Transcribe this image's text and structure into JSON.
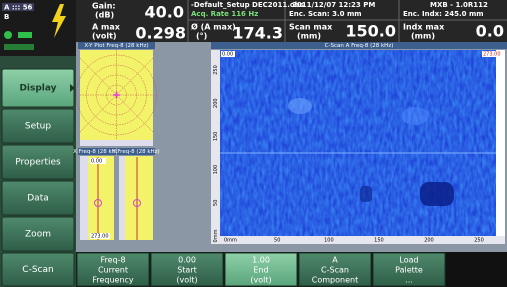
{
  "status": {
    "channel": "A ::: 56",
    "group": "B"
  },
  "header": {
    "gain": {
      "label": [
        "Gain:",
        "(dB)"
      ],
      "value": "40.0"
    },
    "amax": {
      "label": [
        "A max",
        "(volt)"
      ],
      "value": "0.298"
    },
    "file": "-Default_Setup DEC2011.obs",
    "acq_rate": "Acq. Rate 116  Hz",
    "phase": {
      "label": [
        "Ø (A max)",
        "(°)"
      ],
      "value": "174.3"
    },
    "datetime": "2011/12/07 12:23 PM",
    "enc_scan": "Enc. Scan:  3.0 mm",
    "scan_max": {
      "label": [
        "Scan max",
        "(mm)"
      ],
      "value": "150.0"
    },
    "instrument": "MXB - 1.0R112",
    "enc_indx": "Enc. Indx:  245.0 mm",
    "indx_max": {
      "label": [
        "Indx max",
        "(mm)"
      ],
      "value": "0.0"
    }
  },
  "menu": [
    {
      "label": "Display",
      "active": true
    },
    {
      "label": "Setup",
      "active": false
    },
    {
      "label": "Properties",
      "active": false
    },
    {
      "label": "Data",
      "active": false
    },
    {
      "label": "Zoom",
      "active": false
    },
    {
      "label": "C-Scan",
      "active": false
    }
  ],
  "panels": {
    "xy": {
      "title": "X-Y Plot Freq-8 (28 kHz)"
    },
    "x": {
      "title": "X Freq-8 (28 kHz)",
      "top": "0.00",
      "bottom": "273.00"
    },
    "y": {
      "title": "Y Freq-8 (28 kHz)"
    },
    "cscan": {
      "title": "C-Scan A Freq-8 (28 kHz)",
      "top_left": "0.00",
      "top_right": "273.00",
      "y_axis": [
        "250",
        "200",
        "150",
        "100",
        "50",
        "0mm"
      ],
      "x_axis": [
        "0mm",
        "50",
        "100",
        "150",
        "200",
        "250"
      ]
    }
  },
  "toolbar": [
    {
      "value": "Freq-8",
      "label": [
        "Current",
        "Frequency"
      ],
      "active": false
    },
    {
      "value": "0.00",
      "label": [
        "Start",
        "(volt)"
      ],
      "active": false
    },
    {
      "value": "1.00",
      "label": [
        "End",
        "(volt)"
      ],
      "active": true
    },
    {
      "value": "A",
      "label": [
        "C-Scan",
        "Component"
      ],
      "active": false
    },
    {
      "value": "Load",
      "label": [
        "Palette",
        "..."
      ],
      "active": false
    }
  ]
}
